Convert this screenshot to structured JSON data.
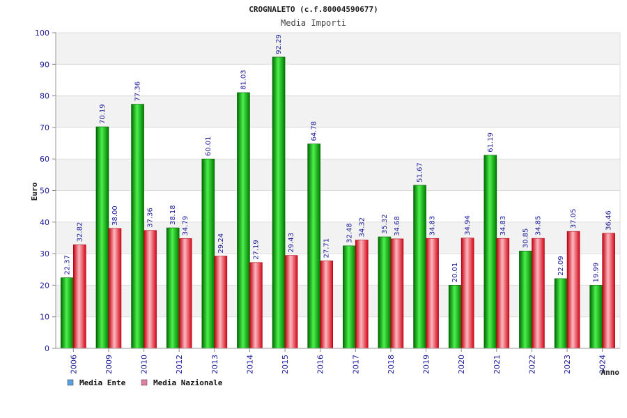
{
  "chart_data": {
    "type": "bar",
    "title": "CROGNALETO (c.f.80004590677)",
    "subtitle": "Media Importi",
    "xlabel": "Anno",
    "ylabel": "Euro",
    "ylim": [
      0,
      100
    ],
    "yticks": [
      "0",
      "10",
      "20",
      "30",
      "40",
      "50",
      "60",
      "70",
      "80",
      "90",
      "100"
    ],
    "categories": [
      "2006",
      "2009",
      "2010",
      "2012",
      "2013",
      "2014",
      "2015",
      "2016",
      "2017",
      "2018",
      "2019",
      "2020",
      "2021",
      "2022",
      "2023",
      "2024"
    ],
    "series": [
      {
        "name": "Media Ente",
        "legend_color": "#5aa0e0",
        "values": [
          22.37,
          70.19,
          77.36,
          38.18,
          60.01,
          81.03,
          92.29,
          64.78,
          32.48,
          35.32,
          51.67,
          20.01,
          61.19,
          30.85,
          22.09,
          19.99
        ],
        "labels": [
          "22.37",
          "70.19",
          "77.36",
          "38.18",
          "60.01",
          "81.03",
          "92.29",
          "64.78",
          "32.48",
          "35.32",
          "51.67",
          "20.01",
          "61.19",
          "30.85",
          "22.09",
          "19.99"
        ]
      },
      {
        "name": "Media Nazionale",
        "legend_color": "#e080a8",
        "values": [
          32.82,
          38.0,
          37.36,
          34.79,
          29.24,
          27.19,
          29.43,
          27.71,
          34.32,
          34.68,
          34.83,
          34.94,
          34.83,
          34.85,
          37.05,
          36.46
        ],
        "labels": [
          "32.82",
          "38.00",
          "37.36",
          "34.79",
          "29.24",
          "27.19",
          "29.43",
          "27.71",
          "34.32",
          "34.68",
          "34.83",
          "34.94",
          "34.83",
          "34.85",
          "37.05",
          "36.46"
        ]
      }
    ],
    "bar_colors": [
      "#00b000",
      "#e01020"
    ],
    "grid": true,
    "legend_position": "bottom-left"
  }
}
